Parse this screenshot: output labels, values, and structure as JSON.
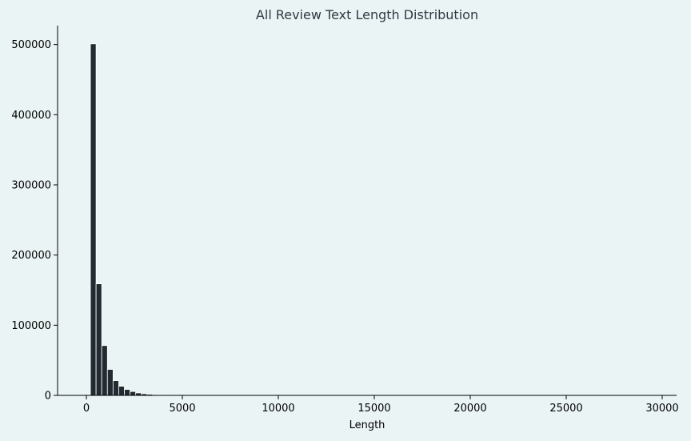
{
  "chart_data": {
    "type": "bar",
    "title": "All Review Text Length Distribution",
    "xlabel": "Length",
    "ylabel": "",
    "xlim": [
      -1500,
      30750
    ],
    "ylim": [
      0,
      527000
    ],
    "x_ticks": [
      0,
      5000,
      10000,
      15000,
      20000,
      25000,
      30000
    ],
    "y_ticks": [
      0,
      100000,
      200000,
      300000,
      400000,
      500000
    ],
    "bin_width": 295,
    "bin_starts": [
      210,
      505,
      800,
      1095,
      1390,
      1685,
      1980,
      2275,
      2570,
      2865,
      3160,
      3455,
      3750
    ],
    "values": [
      501000,
      159000,
      71000,
      37000,
      21000,
      13000,
      8500,
      5500,
      3500,
      2300,
      1600,
      1100,
      700
    ],
    "grid": false,
    "colors": {
      "bar_fill": "#222b31",
      "bar_edge": "#ffffff",
      "axis": "#000000",
      "title": "#2f3b44",
      "background": "#eaf4f4"
    }
  }
}
